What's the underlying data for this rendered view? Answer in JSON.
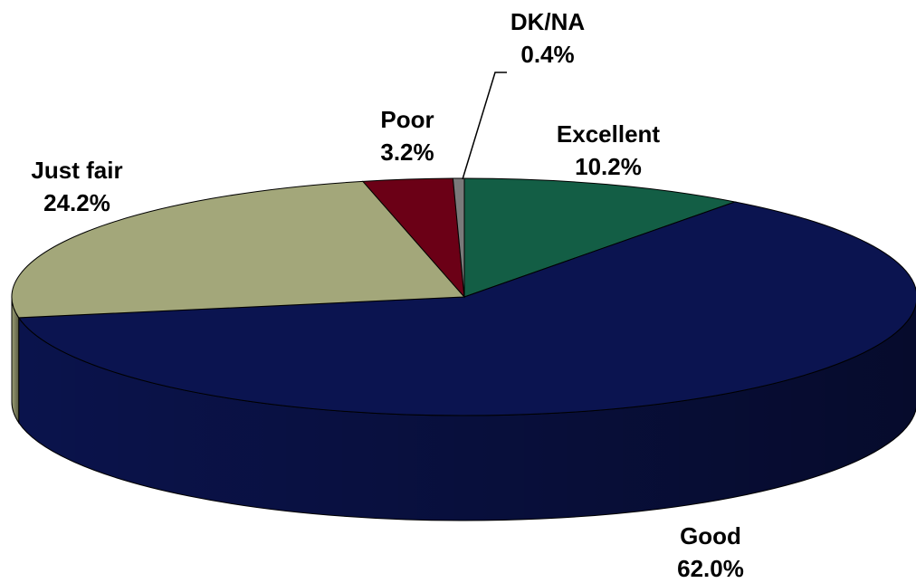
{
  "chart_data": {
    "type": "pie",
    "categories": [
      "Excellent",
      "Good",
      "Just fair",
      "Poor",
      "DK/NA"
    ],
    "values": [
      10.2,
      62.0,
      24.2,
      3.2,
      0.4
    ],
    "value_labels": [
      "10.2%",
      "62.0%",
      "24.2%",
      "3.2%",
      "0.4%"
    ],
    "colors": [
      "#135e45",
      "#0b1450",
      "#a3a77a",
      "#6b0016",
      "#7a7a7a"
    ]
  }
}
